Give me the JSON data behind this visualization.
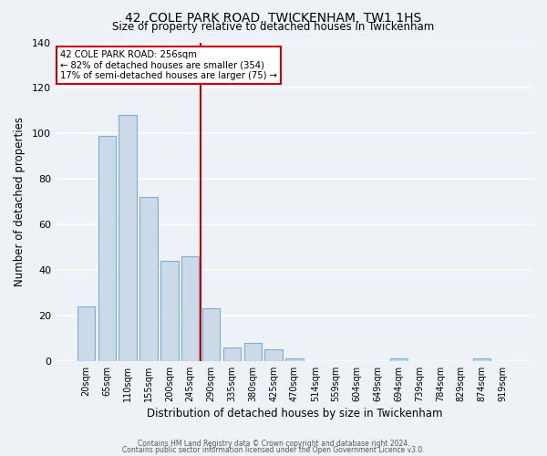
{
  "title": "42, COLE PARK ROAD, TWICKENHAM, TW1 1HS",
  "subtitle": "Size of property relative to detached houses in Twickenham",
  "xlabel": "Distribution of detached houses by size in Twickenham",
  "ylabel": "Number of detached properties",
  "categories": [
    "20sqm",
    "65sqm",
    "110sqm",
    "155sqm",
    "200sqm",
    "245sqm",
    "290sqm",
    "335sqm",
    "380sqm",
    "425sqm",
    "470sqm",
    "514sqm",
    "559sqm",
    "604sqm",
    "649sqm",
    "694sqm",
    "739sqm",
    "784sqm",
    "829sqm",
    "874sqm",
    "919sqm"
  ],
  "values": [
    24,
    99,
    108,
    72,
    44,
    46,
    23,
    6,
    8,
    5,
    1,
    0,
    0,
    0,
    0,
    1,
    0,
    0,
    0,
    1,
    0
  ],
  "bar_color": "#ccd9e8",
  "bar_edge_color": "#7bafd4",
  "background_color": "#eef2f7",
  "plot_bg_color": "#eef2f7",
  "grid_color": "#ffffff",
  "annotation_label": "42 COLE PARK ROAD: 256sqm",
  "annotation_line1": "← 82% of detached houses are smaller (354)",
  "annotation_line2": "17% of semi-detached houses are larger (75) →",
  "annotation_box_color": "#ffffff",
  "annotation_box_edge": "#cc0000",
  "red_line_color": "#cc0000",
  "ylim": [
    0,
    140
  ],
  "footnote1": "Contains HM Land Registry data © Crown copyright and database right 2024.",
  "footnote2": "Contains public sector information licensed under the Open Government Licence v3.0."
}
